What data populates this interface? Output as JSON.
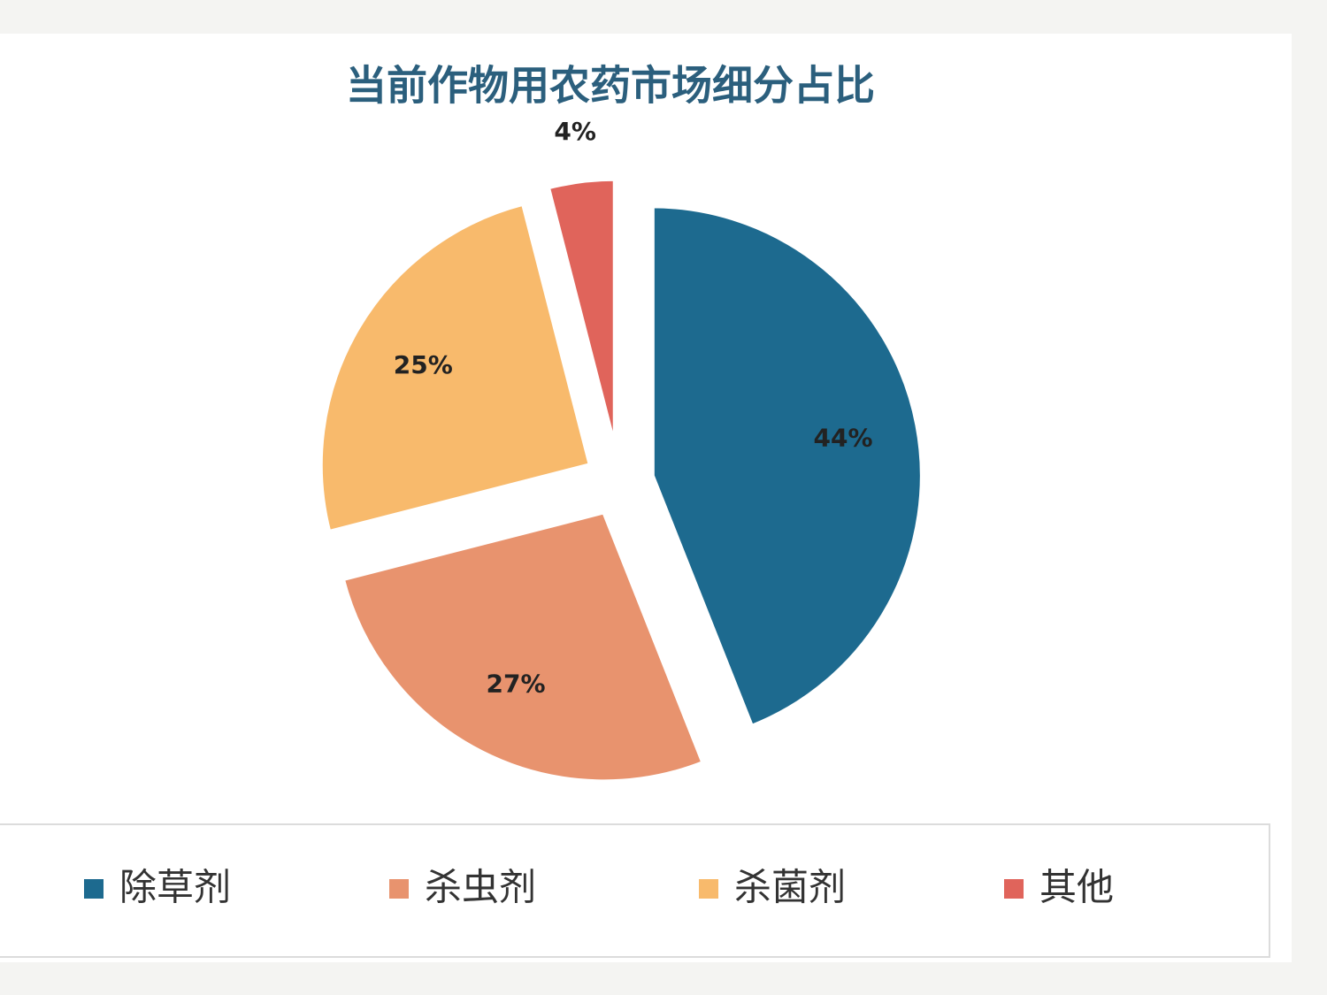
{
  "chart_data": {
    "type": "pie",
    "title": "当前作物用农药市场细分占比",
    "categories": [
      "除草剂",
      "杀虫剂",
      "杀菌剂",
      "其他"
    ],
    "values": [
      44,
      27,
      25,
      4
    ],
    "value_labels": [
      "44%",
      "27%",
      "25%",
      "4%"
    ],
    "colors": [
      "#1d6a8f",
      "#e8936e",
      "#f8ba6c",
      "#e0645b"
    ],
    "legend": "bottom"
  }
}
